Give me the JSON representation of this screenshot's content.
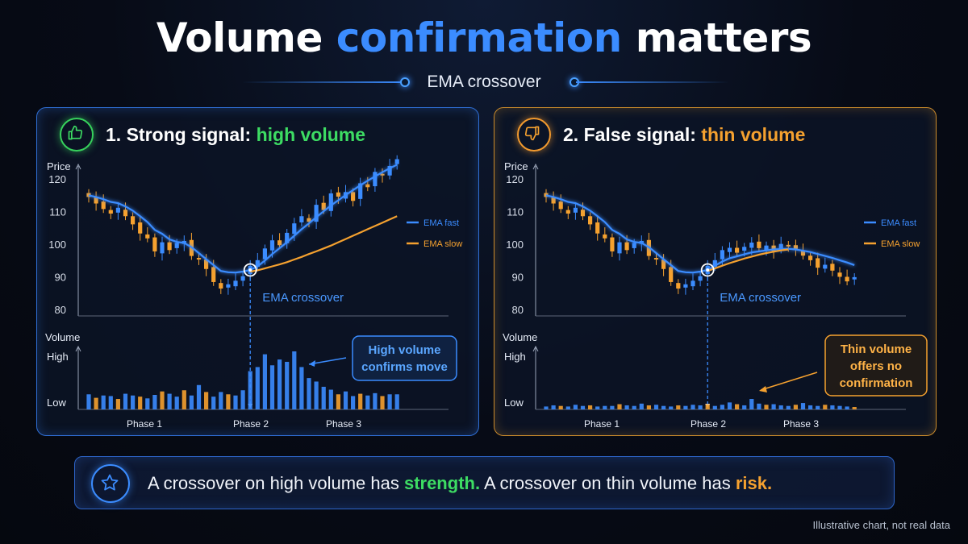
{
  "title": {
    "part1": "Volume",
    "highlight": "confirmation",
    "part2": "matters"
  },
  "subtitle": "EMA crossover",
  "colors": {
    "blue": "#3b8cff",
    "orange": "#f5a12f",
    "green": "#3ddc63"
  },
  "panels": [
    {
      "heading_prefix": "1. Strong signal: ",
      "heading_accent": "high volume",
      "icon": "thumbs-up-icon",
      "callout_lines": [
        "High volume",
        "confirms move"
      ]
    },
    {
      "heading_prefix": "2. False signal: ",
      "heading_accent": "thin volume",
      "icon": "thumbs-down-icon",
      "callout_lines": [
        "Thin volume",
        "offers no",
        "confirmation"
      ]
    }
  ],
  "bottom": {
    "icon": "star-icon",
    "text1": "A crossover on high volume has ",
    "strong": "strength.",
    "text2": " A crossover on thin volume has ",
    "risk": "risk."
  },
  "footnote": "Illustrative chart, not real data",
  "chart_data": [
    {
      "type": "candlestick",
      "price_label": "Price",
      "volume_label": "Volume",
      "ylim": [
        78,
        124
      ],
      "yticks": [
        120,
        110,
        100,
        90,
        80
      ],
      "volume_ticks": [
        "High",
        "Low"
      ],
      "phases": [
        "Phase 1",
        "Phase 2",
        "Phase 3"
      ],
      "legend": [
        "EMA fast",
        "EMA slow"
      ],
      "annotation": "EMA crossover",
      "crossover_index": 22,
      "close": [
        114.5,
        112.5,
        110.8,
        109.4,
        111.2,
        108.6,
        106.1,
        103.3,
        101.8,
        97.8,
        100.6,
        98.2,
        100.4,
        101.0,
        96.4,
        95.3,
        92.4,
        88.4,
        86.4,
        87.7,
        88.8,
        90.2,
        93.4,
        95.1,
        98.7,
        101.2,
        99.7,
        103.5,
        106.4,
        108.6,
        106.9,
        112.1,
        110.5,
        115.6,
        114.6,
        116.0,
        113.3,
        118.7,
        117.5,
        122.2,
        121.1,
        124.0,
        126.1
      ],
      "ema_fast": [
        115.0,
        114.5,
        113.8,
        113.0,
        112.6,
        111.6,
        110.3,
        108.6,
        106.8,
        104.4,
        103.2,
        101.5,
        100.7,
        100.4,
        99.1,
        97.3,
        95.4,
        93.6,
        91.8,
        91.4,
        91.3,
        91.6,
        92.1,
        93.2,
        95.0,
        97.0,
        98.8,
        100.6,
        102.6,
        104.6,
        106.4,
        108.3,
        110.1,
        111.9,
        113.5,
        115.1,
        116.6,
        118.1,
        119.5,
        120.8,
        122.1,
        123.3,
        124.4
      ],
      "ema_slow_start": 22,
      "ema_slow": [
        91.6,
        92.0,
        92.6,
        93.2,
        93.8,
        94.5,
        95.3,
        96.1,
        97.0,
        97.8,
        98.7,
        99.6,
        100.6,
        101.6,
        102.6,
        103.6,
        104.6,
        105.6,
        106.6,
        107.6,
        108.6
      ],
      "volume": [
        0.26,
        0.2,
        0.24,
        0.23,
        0.18,
        0.27,
        0.24,
        0.22,
        0.19,
        0.25,
        0.31,
        0.27,
        0.22,
        0.33,
        0.24,
        0.42,
        0.3,
        0.22,
        0.3,
        0.26,
        0.24,
        0.33,
        0.66,
        0.73,
        0.95,
        0.76,
        0.86,
        0.82,
        1.0,
        0.73,
        0.54,
        0.48,
        0.39,
        0.34,
        0.26,
        0.31,
        0.23,
        0.27,
        0.24,
        0.28,
        0.23,
        0.26,
        0.26
      ]
    },
    {
      "type": "candlestick",
      "price_label": "Price",
      "volume_label": "Volume",
      "ylim": [
        78,
        124
      ],
      "yticks": [
        120,
        110,
        100,
        90,
        80
      ],
      "volume_ticks": [
        "High",
        "Low"
      ],
      "phases": [
        "Phase 1",
        "Phase 2",
        "Phase 3"
      ],
      "legend": [
        "EMA fast",
        "EMA slow"
      ],
      "annotation": "EMA crossover",
      "crossover_index": 22,
      "close": [
        114.5,
        112.5,
        110.8,
        109.4,
        111.2,
        108.6,
        106.1,
        103.3,
        101.8,
        97.8,
        100.6,
        98.2,
        100.4,
        101.0,
        96.4,
        95.3,
        92.4,
        88.4,
        86.4,
        87.7,
        88.8,
        90.2,
        93.4,
        95.1,
        98.2,
        98.9,
        97.4,
        99.2,
        100.5,
        98.8,
        99.6,
        97.8,
        100.1,
        99.4,
        98.6,
        96.5,
        95.1,
        92.8,
        93.7,
        91.9,
        90.0,
        88.6,
        89.9
      ],
      "ema_fast": [
        115.0,
        114.5,
        113.8,
        113.0,
        112.6,
        111.6,
        110.3,
        108.6,
        106.8,
        104.4,
        103.2,
        101.5,
        100.7,
        100.4,
        99.1,
        97.3,
        95.4,
        93.6,
        91.8,
        91.4,
        91.3,
        91.6,
        92.1,
        93.4,
        94.7,
        95.7,
        96.3,
        96.9,
        97.5,
        97.8,
        98.1,
        98.4,
        98.5,
        98.6,
        98.4,
        98.0,
        97.6,
        97.0,
        96.4,
        95.8,
        95.1,
        94.4,
        93.6
      ],
      "ema_slow_start": 22,
      "ema_slow": [
        91.8,
        92.6,
        93.4,
        94.2,
        94.9,
        95.6,
        96.2,
        96.8,
        97.3,
        97.7,
        98.1,
        98.4
      ],
      "volume": [
        0.05,
        0.07,
        0.06,
        0.05,
        0.08,
        0.06,
        0.07,
        0.05,
        0.06,
        0.06,
        0.09,
        0.07,
        0.06,
        0.1,
        0.07,
        0.08,
        0.06,
        0.05,
        0.07,
        0.06,
        0.08,
        0.07,
        0.09,
        0.06,
        0.08,
        0.12,
        0.09,
        0.07,
        0.18,
        0.1,
        0.08,
        0.09,
        0.07,
        0.06,
        0.08,
        0.11,
        0.07,
        0.06,
        0.08,
        0.07,
        0.06,
        0.05,
        0.04
      ]
    }
  ]
}
